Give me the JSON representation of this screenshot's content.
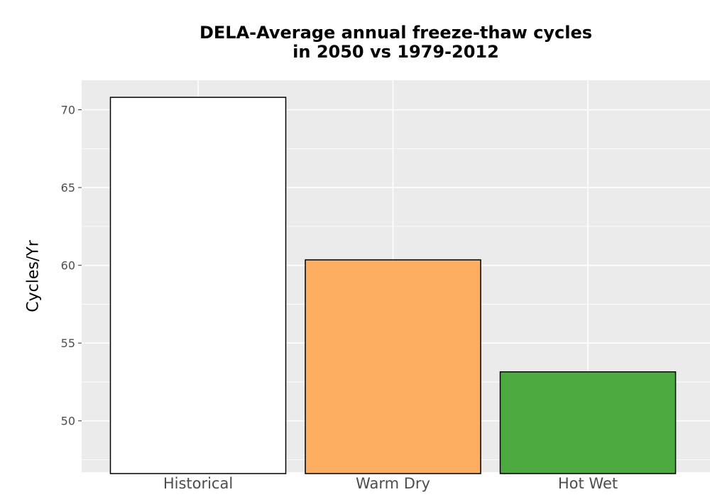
{
  "chart_data": {
    "type": "bar",
    "title_line1": "DELA-Average annual freeze-thaw cycles",
    "title_line2": "in 2050 vs 1979-2012",
    "xlabel": "",
    "ylabel": "Cycles/Yr",
    "categories": [
      "Historical",
      "Warm Dry",
      "Hot Wet"
    ],
    "values": [
      70.8,
      60.35,
      53.15
    ],
    "colors": [
      "#ffffff",
      "#fdae61",
      "#4daa40"
    ],
    "yticks": [
      50,
      55,
      60,
      65,
      70
    ],
    "ylim": [
      46.7,
      71.9
    ],
    "grid": true,
    "background": "#ebebeb",
    "corner_label": "Q"
  }
}
